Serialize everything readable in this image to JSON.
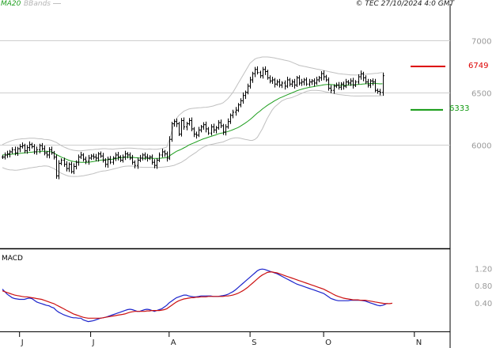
{
  "header": {
    "ma_label": "MA20",
    "bb_label": "BBands",
    "copyright": "© TEC 27/10/2024 4:0 GMT"
  },
  "macd_panel": {
    "label": "MACD"
  },
  "levels": {
    "resistance": {
      "label": "6749",
      "value": 6749,
      "color": "#dd0000"
    },
    "support": {
      "label": "6333",
      "value": 6333,
      "color": "#119911"
    }
  },
  "colors": {
    "ma": "#1e9e1e",
    "bands": "#c0c0c0",
    "bars": "#000000",
    "macd": "#1c24cc",
    "signal": "#cc1111",
    "grid": "#cfcfcf"
  },
  "chart_data": [
    {
      "type": "ohlc",
      "title": "",
      "ylim": [
        5050,
        7280
      ],
      "yticks": [
        {
          "label": "7000",
          "value": 7000
        },
        {
          "label": "6500",
          "value": 6500
        },
        {
          "label": "6000",
          "value": 6000
        }
      ],
      "xlabels": [
        {
          "label": "J",
          "index": 7
        },
        {
          "label": "J",
          "index": 36
        },
        {
          "label": "A",
          "index": 68
        },
        {
          "label": "S",
          "index": 101
        },
        {
          "label": "O",
          "index": 131
        },
        {
          "label": "N",
          "index": 168
        }
      ],
      "grid": true,
      "legend": "top-left",
      "closes": [
        5880,
        5900,
        5910,
        5930,
        5950,
        5920,
        5960,
        5980,
        5990,
        5940,
        5970,
        6000,
        5980,
        5930,
        5950,
        5990,
        5960,
        5920,
        5900,
        5950,
        5920,
        5880,
        5700,
        5820,
        5850,
        5810,
        5770,
        5810,
        5740,
        5790,
        5830,
        5880,
        5900,
        5860,
        5840,
        5870,
        5890,
        5880,
        5870,
        5910,
        5890,
        5850,
        5810,
        5860,
        5830,
        5870,
        5900,
        5880,
        5850,
        5880,
        5910,
        5900,
        5870,
        5830,
        5800,
        5850,
        5870,
        5900,
        5880,
        5870,
        5880,
        5830,
        5800,
        5850,
        5900,
        5930,
        5910,
        5870,
        6050,
        6200,
        6220,
        6200,
        6100,
        6230,
        6170,
        6200,
        6230,
        6150,
        6100,
        6090,
        6140,
        6170,
        6190,
        6150,
        6110,
        6170,
        6140,
        6160,
        6210,
        6180,
        6120,
        6170,
        6220,
        6280,
        6310,
        6330,
        6380,
        6420,
        6470,
        6500,
        6560,
        6620,
        6680,
        6720,
        6690,
        6660,
        6720,
        6700,
        6640,
        6610,
        6620,
        6580,
        6600,
        6570,
        6590,
        6560,
        6620,
        6580,
        6600,
        6570,
        6640,
        6590,
        6600,
        6620,
        6580,
        6600,
        6610,
        6590,
        6620,
        6640,
        6680,
        6650,
        6620,
        6540,
        6520,
        6560,
        6570,
        6550,
        6580,
        6560,
        6600,
        6590,
        6610,
        6570,
        6600,
        6650,
        6680,
        6640,
        6600,
        6570,
        6610,
        6600,
        6520,
        6510,
        6500,
        6660
      ],
      "ma20": [
        5900,
        5900,
        5902,
        5905,
        5908,
        5910,
        5912,
        5915,
        5918,
        5920,
        5922,
        5925,
        5927,
        5930,
        5931,
        5932,
        5935,
        5936,
        5935,
        5933,
        5930,
        5920,
        5905,
        5892,
        5880,
        5870,
        5860,
        5850,
        5843,
        5838,
        5834,
        5832,
        5830,
        5830,
        5830,
        5830,
        5833,
        5837,
        5840,
        5845,
        5850,
        5852,
        5853,
        5855,
        5858,
        5860,
        5864,
        5869,
        5872,
        5875,
        5878,
        5880,
        5880,
        5878,
        5875,
        5873,
        5870,
        5869,
        5868,
        5868,
        5868,
        5868,
        5867,
        5867,
        5868,
        5870,
        5872,
        5875,
        5890,
        5905,
        5920,
        5935,
        5945,
        5955,
        5968,
        5980,
        5995,
        6005,
        6015,
        6025,
        6035,
        6045,
        6055,
        6062,
        6070,
        6078,
        6085,
        6092,
        6102,
        6108,
        6112,
        6118,
        6125,
        6133,
        6142,
        6152,
        6162,
        6175,
        6190,
        6205,
        6222,
        6240,
        6260,
        6282,
        6302,
        6320,
        6340,
        6358,
        6375,
        6390,
        6405,
        6420,
        6432,
        6445,
        6455,
        6465,
        6475,
        6485,
        6495,
        6505,
        6515,
        6523,
        6530,
        6537,
        6543,
        6548,
        6552,
        6556,
        6560,
        6564,
        6568,
        6572,
        6575,
        6577,
        6575,
        6572,
        6570,
        6568,
        6567,
        6566,
        6568,
        6570,
        6572,
        6573,
        6574,
        6576,
        6578,
        6580,
        6582,
        6584,
        6586,
        6586,
        6585,
        6584,
        6582,
        6583
      ],
      "bb_upper": [
        6000,
        6010,
        6020,
        6030,
        6038,
        6045,
        6050,
        6052,
        6055,
        6056,
        6058,
        6060,
        6060,
        6060,
        6058,
        6055,
        6055,
        6050,
        6048,
        6045,
        6040,
        6030,
        6020,
        6005,
        5990,
        5978,
        5968,
        5958,
        5950,
        5945,
        5942,
        5940,
        5940,
        5942,
        5945,
        5948,
        5950,
        5952,
        5954,
        5956,
        5958,
        5960,
        5960,
        5958,
        5957,
        5956,
        5958,
        5960,
        5962,
        5963,
        5965,
        5966,
        5966,
        5965,
        5963,
        5961,
        5960,
        5958,
        5956,
        5956,
        5957,
        5956,
        5955,
        5955,
        5958,
        5962,
        5968,
        5975,
        6040,
        6120,
        6200,
        6250,
        6280,
        6300,
        6320,
        6330,
        6340,
        6345,
        6348,
        6350,
        6352,
        6354,
        6356,
        6358,
        6360,
        6365,
        6370,
        6378,
        6385,
        6390,
        6400,
        6420,
        6440,
        6470,
        6500,
        6540,
        6580,
        6620,
        6660,
        6700,
        6740,
        6780,
        6800,
        6820,
        6830,
        6835,
        6840,
        6840,
        6840,
        6838,
        6835,
        6830,
        6825,
        6820,
        6815,
        6810,
        6805,
        6800,
        6790,
        6780,
        6770,
        6760,
        6755,
        6750,
        6745,
        6740,
        6735,
        6730,
        6725,
        6720,
        6715,
        6710,
        6705,
        6700,
        6695,
        6690,
        6685,
        6680,
        6678,
        6675,
        6673,
        6670,
        6668,
        6667,
        6666,
        6668,
        6670,
        6672,
        6674,
        6676,
        6678,
        6680,
        6682,
        6684,
        6688,
        6690
      ],
      "bb_lower": [
        5780,
        5770,
        5762,
        5758,
        5756,
        5754,
        5755,
        5758,
        5762,
        5766,
        5770,
        5775,
        5778,
        5782,
        5785,
        5790,
        5792,
        5795,
        5794,
        5790,
        5780,
        5770,
        5755,
        5740,
        5725,
        5715,
        5705,
        5698,
        5695,
        5694,
        5694,
        5695,
        5698,
        5700,
        5705,
        5710,
        5715,
        5720,
        5728,
        5735,
        5742,
        5746,
        5748,
        5752,
        5758,
        5764,
        5770,
        5776,
        5782,
        5787,
        5791,
        5793,
        5794,
        5793,
        5790,
        5787,
        5784,
        5782,
        5781,
        5781,
        5781,
        5781,
        5781,
        5782,
        5782,
        5783,
        5785,
        5788,
        5790,
        5795,
        5800,
        5810,
        5820,
        5830,
        5845,
        5860,
        5880,
        5895,
        5910,
        5925,
        5945,
        5960,
        5975,
        5985,
        5995,
        6000,
        6005,
        6010,
        6015,
        6020,
        6025,
        6035,
        6045,
        6055,
        6060,
        6065,
        6065,
        6060,
        6055,
        6050,
        6045,
        6040,
        6040,
        6050,
        6070,
        6110,
        6150,
        6200,
        6250,
        6290,
        6330,
        6360,
        6380,
        6400,
        6420,
        6430,
        6440,
        6445,
        6450,
        6460,
        6470,
        6480,
        6490,
        6500,
        6510,
        6515,
        6520,
        6520,
        6520,
        6518,
        6515,
        6510,
        6505,
        6500,
        6495,
        6490,
        6485,
        6480,
        6478,
        6475,
        6472,
        6470,
        6468,
        6466,
        6465,
        6465,
        6465,
        6466,
        6466,
        6466,
        6466,
        6466,
        6466,
        6467,
        6468,
        6470
      ]
    },
    {
      "type": "line",
      "title": "",
      "ylim": [
        -0.25,
        1.6
      ],
      "yticks": [
        {
          "label": "1.20",
          "value": 1.2
        },
        {
          "label": "0.80",
          "value": 0.8
        },
        {
          "label": "0.40",
          "value": 0.4
        }
      ],
      "series": [
        {
          "name": "",
          "color": "#1c24cc",
          "values": [
            0.72,
            0.66,
            0.6,
            0.56,
            0.52,
            0.5,
            0.49,
            0.48,
            0.48,
            0.48,
            0.5,
            0.51,
            0.5,
            0.46,
            0.42,
            0.4,
            0.38,
            0.36,
            0.34,
            0.33,
            0.3,
            0.28,
            0.22,
            0.18,
            0.15,
            0.12,
            0.1,
            0.08,
            0.06,
            0.05,
            0.05,
            0.04,
            0.04,
            0,
            -0.02,
            -0.04,
            -0.03,
            -0.02,
            0,
            0.02,
            0.04,
            0.05,
            0.06,
            0.08,
            0.1,
            0.12,
            0.14,
            0.16,
            0.18,
            0.2,
            0.22,
            0.24,
            0.25,
            0.24,
            0.22,
            0.2,
            0.2,
            0.22,
            0.24,
            0.25,
            0.24,
            0.22,
            0.2,
            0.22,
            0.24,
            0.26,
            0.3,
            0.34,
            0.4,
            0.44,
            0.48,
            0.52,
            0.54,
            0.56,
            0.58,
            0.58,
            0.56,
            0.55,
            0.54,
            0.54,
            0.55,
            0.56,
            0.56,
            0.56,
            0.56,
            0.56,
            0.55,
            0.55,
            0.55,
            0.56,
            0.57,
            0.58,
            0.6,
            0.63,
            0.66,
            0.7,
            0.75,
            0.8,
            0.85,
            0.9,
            0.95,
            1,
            1.05,
            1.1,
            1.15,
            1.18,
            1.19,
            1.18,
            1.16,
            1.14,
            1.12,
            1.1,
            1.08,
            1.05,
            1.02,
            0.99,
            0.96,
            0.93,
            0.9,
            0.87,
            0.84,
            0.82,
            0.8,
            0.78,
            0.76,
            0.74,
            0.72,
            0.7,
            0.68,
            0.66,
            0.64,
            0.62,
            0.58,
            0.54,
            0.5,
            0.48,
            0.46,
            0.45,
            0.45,
            0.45,
            0.45,
            0.45,
            0.46,
            0.46,
            0.46,
            0.46,
            0.46,
            0.45,
            0.44,
            0.42,
            0.4,
            0.38,
            0.36,
            0.34,
            0.33,
            0.34,
            0.36,
            0.39
          ]
        },
        {
          "name": "",
          "color": "#cc1111",
          "values": [
            0.68,
            0.66,
            0.64,
            0.62,
            0.6,
            0.58,
            0.57,
            0.56,
            0.55,
            0.54,
            0.54,
            0.53,
            0.52,
            0.51,
            0.5,
            0.49,
            0.48,
            0.46,
            0.44,
            0.42,
            0.4,
            0.38,
            0.35,
            0.32,
            0.29,
            0.26,
            0.23,
            0.2,
            0.17,
            0.14,
            0.12,
            0.1,
            0.08,
            0.06,
            0.05,
            0.04,
            0.04,
            0.04,
            0.04,
            0.04,
            0.04,
            0.05,
            0.06,
            0.07,
            0.08,
            0.09,
            0.1,
            0.11,
            0.12,
            0.13,
            0.14,
            0.16,
            0.18,
            0.19,
            0.2,
            0.2,
            0.2,
            0.2,
            0.2,
            0.21,
            0.21,
            0.22,
            0.22,
            0.22,
            0.22,
            0.23,
            0.24,
            0.26,
            0.3,
            0.34,
            0.38,
            0.42,
            0.45,
            0.47,
            0.49,
            0.5,
            0.51,
            0.52,
            0.52,
            0.53,
            0.53,
            0.54,
            0.54,
            0.54,
            0.55,
            0.55,
            0.55,
            0.55,
            0.55,
            0.55,
            0.55,
            0.56,
            0.56,
            0.57,
            0.58,
            0.6,
            0.62,
            0.65,
            0.68,
            0.72,
            0.76,
            0.81,
            0.86,
            0.91,
            0.96,
            1.01,
            1.05,
            1.08,
            1.11,
            1.12,
            1.12,
            1.11,
            1.1,
            1.08,
            1.06,
            1.04,
            1.02,
            1,
            0.98,
            0.96,
            0.94,
            0.92,
            0.9,
            0.88,
            0.86,
            0.84,
            0.82,
            0.8,
            0.78,
            0.76,
            0.74,
            0.72,
            0.69,
            0.66,
            0.63,
            0.6,
            0.57,
            0.55,
            0.53,
            0.51,
            0.5,
            0.49,
            0.48,
            0.47,
            0.47,
            0.47,
            0.46,
            0.46,
            0.46,
            0.45,
            0.44,
            0.43,
            0.42,
            0.41,
            0.4,
            0.39,
            0.38,
            0.38,
            0.38,
            0.39
          ]
        }
      ]
    }
  ]
}
